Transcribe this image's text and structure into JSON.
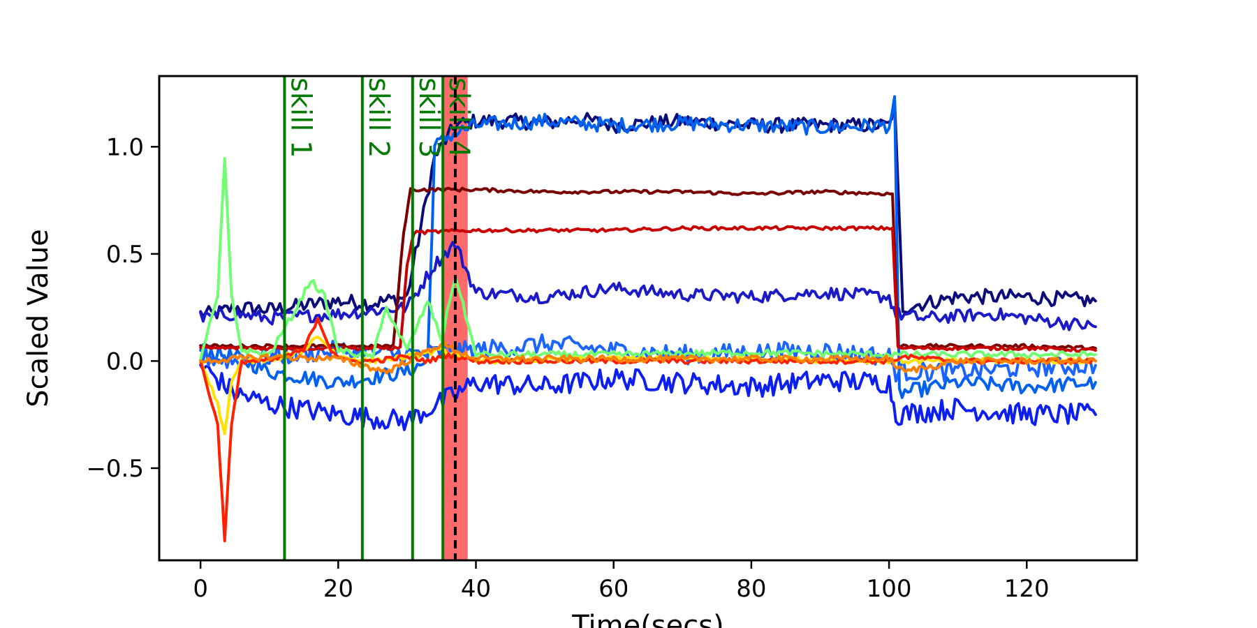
{
  "chart_data": {
    "type": "line",
    "title": "",
    "xlabel": "Time(secs)",
    "ylabel": "Scaled Value",
    "xlim": [
      -6,
      136
    ],
    "ylim": [
      -0.93,
      1.33
    ],
    "x_ticks": [
      0,
      20,
      40,
      60,
      80,
      100,
      120
    ],
    "x_tick_labels": [
      "0",
      "20",
      "40",
      "60",
      "80",
      "100",
      "120"
    ],
    "y_ticks": [
      -0.5,
      0.0,
      0.5,
      1.0
    ],
    "y_tick_labels": [
      "−0.5",
      "0.0",
      "0.5",
      "1.0"
    ],
    "grid": false,
    "legend": "none",
    "skill_markers": [
      {
        "x": 12.2,
        "label": "skill 1"
      },
      {
        "x": 23.5,
        "label": "skill 2"
      },
      {
        "x": 30.8,
        "label": "skill 3"
      },
      {
        "x": 35.2,
        "label": "skill 4"
      }
    ],
    "highlight_band": {
      "x_start": 35.2,
      "x_end": 38.8,
      "color": "#ff6b6b"
    },
    "dashed_marker": {
      "x": 37.0,
      "color": "#000000"
    },
    "series": [
      {
        "color": "#0a0a7a",
        "x": [
          0,
          2,
          5,
          10,
          15,
          20,
          25,
          30,
          34,
          36,
          37,
          40,
          45,
          50,
          55,
          60,
          70,
          80,
          90,
          100,
          100.8,
          102,
          110,
          120,
          130
        ],
        "y": [
          0.22,
          0.22,
          0.25,
          0.24,
          0.26,
          0.28,
          0.27,
          0.3,
          0.95,
          1.05,
          1.1,
          1.12,
          1.12,
          1.11,
          1.13,
          1.1,
          1.12,
          1.1,
          1.1,
          1.1,
          1.2,
          0.25,
          0.3,
          0.3,
          0.28
        ]
      },
      {
        "color": "#0060f0",
        "x": [
          0,
          5,
          10,
          20,
          30,
          33,
          34,
          36,
          40,
          50,
          60,
          70,
          80,
          90,
          100,
          100.8,
          101.5,
          110,
          120,
          130
        ],
        "y": [
          0.05,
          0.02,
          -0.05,
          -0.1,
          -0.05,
          0.0,
          1.0,
          1.05,
          1.1,
          1.12,
          1.1,
          1.11,
          1.1,
          1.09,
          1.1,
          1.2,
          -0.15,
          -0.1,
          -0.12,
          -0.1
        ]
      },
      {
        "color": "#1a1ac8",
        "x": [
          0,
          5,
          10,
          20,
          30,
          34,
          37,
          40,
          50,
          60,
          70,
          80,
          90,
          100,
          101,
          105,
          115,
          125,
          130
        ],
        "y": [
          0.2,
          0.22,
          0.2,
          0.22,
          0.25,
          0.45,
          0.55,
          0.32,
          0.3,
          0.34,
          0.31,
          0.3,
          0.32,
          0.3,
          0.22,
          0.2,
          0.22,
          0.18,
          0.16
        ]
      },
      {
        "color": "#0c1ef0",
        "x": [
          0,
          5,
          10,
          20,
          30,
          40,
          50,
          60,
          70,
          80,
          90,
          100,
          101,
          110,
          120,
          130
        ],
        "y": [
          -0.02,
          -0.15,
          -0.2,
          -0.25,
          -0.28,
          -0.1,
          -0.12,
          -0.08,
          -0.1,
          -0.12,
          -0.09,
          -0.1,
          -0.25,
          -0.22,
          -0.25,
          -0.25
        ]
      },
      {
        "color": "#1c64ff",
        "x": [
          0,
          5,
          10,
          20,
          30,
          40,
          50,
          60,
          70,
          80,
          90,
          100,
          101,
          110,
          120,
          130
        ],
        "y": [
          0.02,
          0.0,
          0.02,
          0.05,
          0.03,
          0.05,
          0.08,
          0.05,
          0.03,
          0.04,
          0.05,
          0.02,
          -0.05,
          -0.05,
          -0.03,
          -0.02
        ]
      },
      {
        "color": "#7a0000",
        "x": [
          0,
          10,
          20,
          28,
          29.5,
          30.5,
          40,
          50,
          60,
          70,
          80,
          90,
          100.5,
          101.3,
          110,
          120,
          130
        ],
        "y": [
          0.07,
          0.07,
          0.07,
          0.07,
          0.6,
          0.8,
          0.8,
          0.79,
          0.79,
          0.79,
          0.78,
          0.79,
          0.78,
          0.07,
          0.07,
          0.07,
          0.06
        ]
      },
      {
        "color": "#c80000",
        "x": [
          0,
          10,
          20,
          29,
          30,
          31,
          40,
          50,
          60,
          70,
          80,
          90,
          100.5,
          101.3,
          110,
          120,
          130
        ],
        "y": [
          0.06,
          0.06,
          0.06,
          0.06,
          0.45,
          0.6,
          0.61,
          0.61,
          0.61,
          0.62,
          0.62,
          0.62,
          0.62,
          0.06,
          0.06,
          0.06,
          0.05
        ]
      },
      {
        "color": "#70ff70",
        "x": [
          0,
          2.5,
          3.5,
          4.5,
          6,
          10,
          14,
          16,
          18,
          20,
          25,
          27,
          30,
          33,
          35,
          37,
          40,
          60,
          80,
          100,
          120,
          130
        ],
        "y": [
          0.02,
          0.3,
          0.95,
          0.3,
          0.05,
          0.03,
          0.25,
          0.38,
          0.3,
          0.05,
          0.02,
          0.25,
          0.05,
          0.28,
          0.1,
          0.4,
          0.03,
          0.03,
          0.04,
          0.03,
          0.03,
          0.03
        ]
      },
      {
        "color": "#ffe000",
        "x": [
          0,
          2.5,
          3.5,
          4.5,
          6,
          10,
          15,
          17,
          20,
          25,
          30,
          35,
          40,
          60,
          80,
          100,
          120,
          130
        ],
        "y": [
          0.0,
          -0.2,
          -0.35,
          -0.1,
          0.0,
          0.0,
          0.05,
          0.12,
          0.02,
          0.0,
          0.02,
          0.05,
          0.0,
          0.01,
          0.01,
          0.0,
          0.0,
          0.0
        ]
      },
      {
        "color": "#ff2000",
        "x": [
          0,
          2.5,
          3.5,
          4.5,
          6,
          10,
          15,
          17,
          19,
          21,
          25,
          30,
          33,
          36,
          40,
          60,
          80,
          100,
          102,
          110,
          120,
          130
        ],
        "y": [
          0.0,
          -0.3,
          -0.83,
          -0.3,
          0.0,
          0.0,
          0.05,
          0.2,
          0.05,
          0.0,
          0.0,
          0.02,
          0.0,
          0.03,
          0.0,
          0.0,
          0.0,
          0.0,
          0.02,
          0.0,
          0.0,
          0.0
        ]
      },
      {
        "color": "#ff8000",
        "x": [
          0,
          5,
          10,
          20,
          27,
          30,
          35,
          40,
          60,
          80,
          100,
          102,
          110,
          120,
          130
        ],
        "y": [
          0.0,
          0.01,
          0.02,
          0.01,
          -0.05,
          0.0,
          0.08,
          0.01,
          0.01,
          0.01,
          0.01,
          -0.05,
          0.0,
          0.0,
          0.0
        ]
      }
    ]
  }
}
